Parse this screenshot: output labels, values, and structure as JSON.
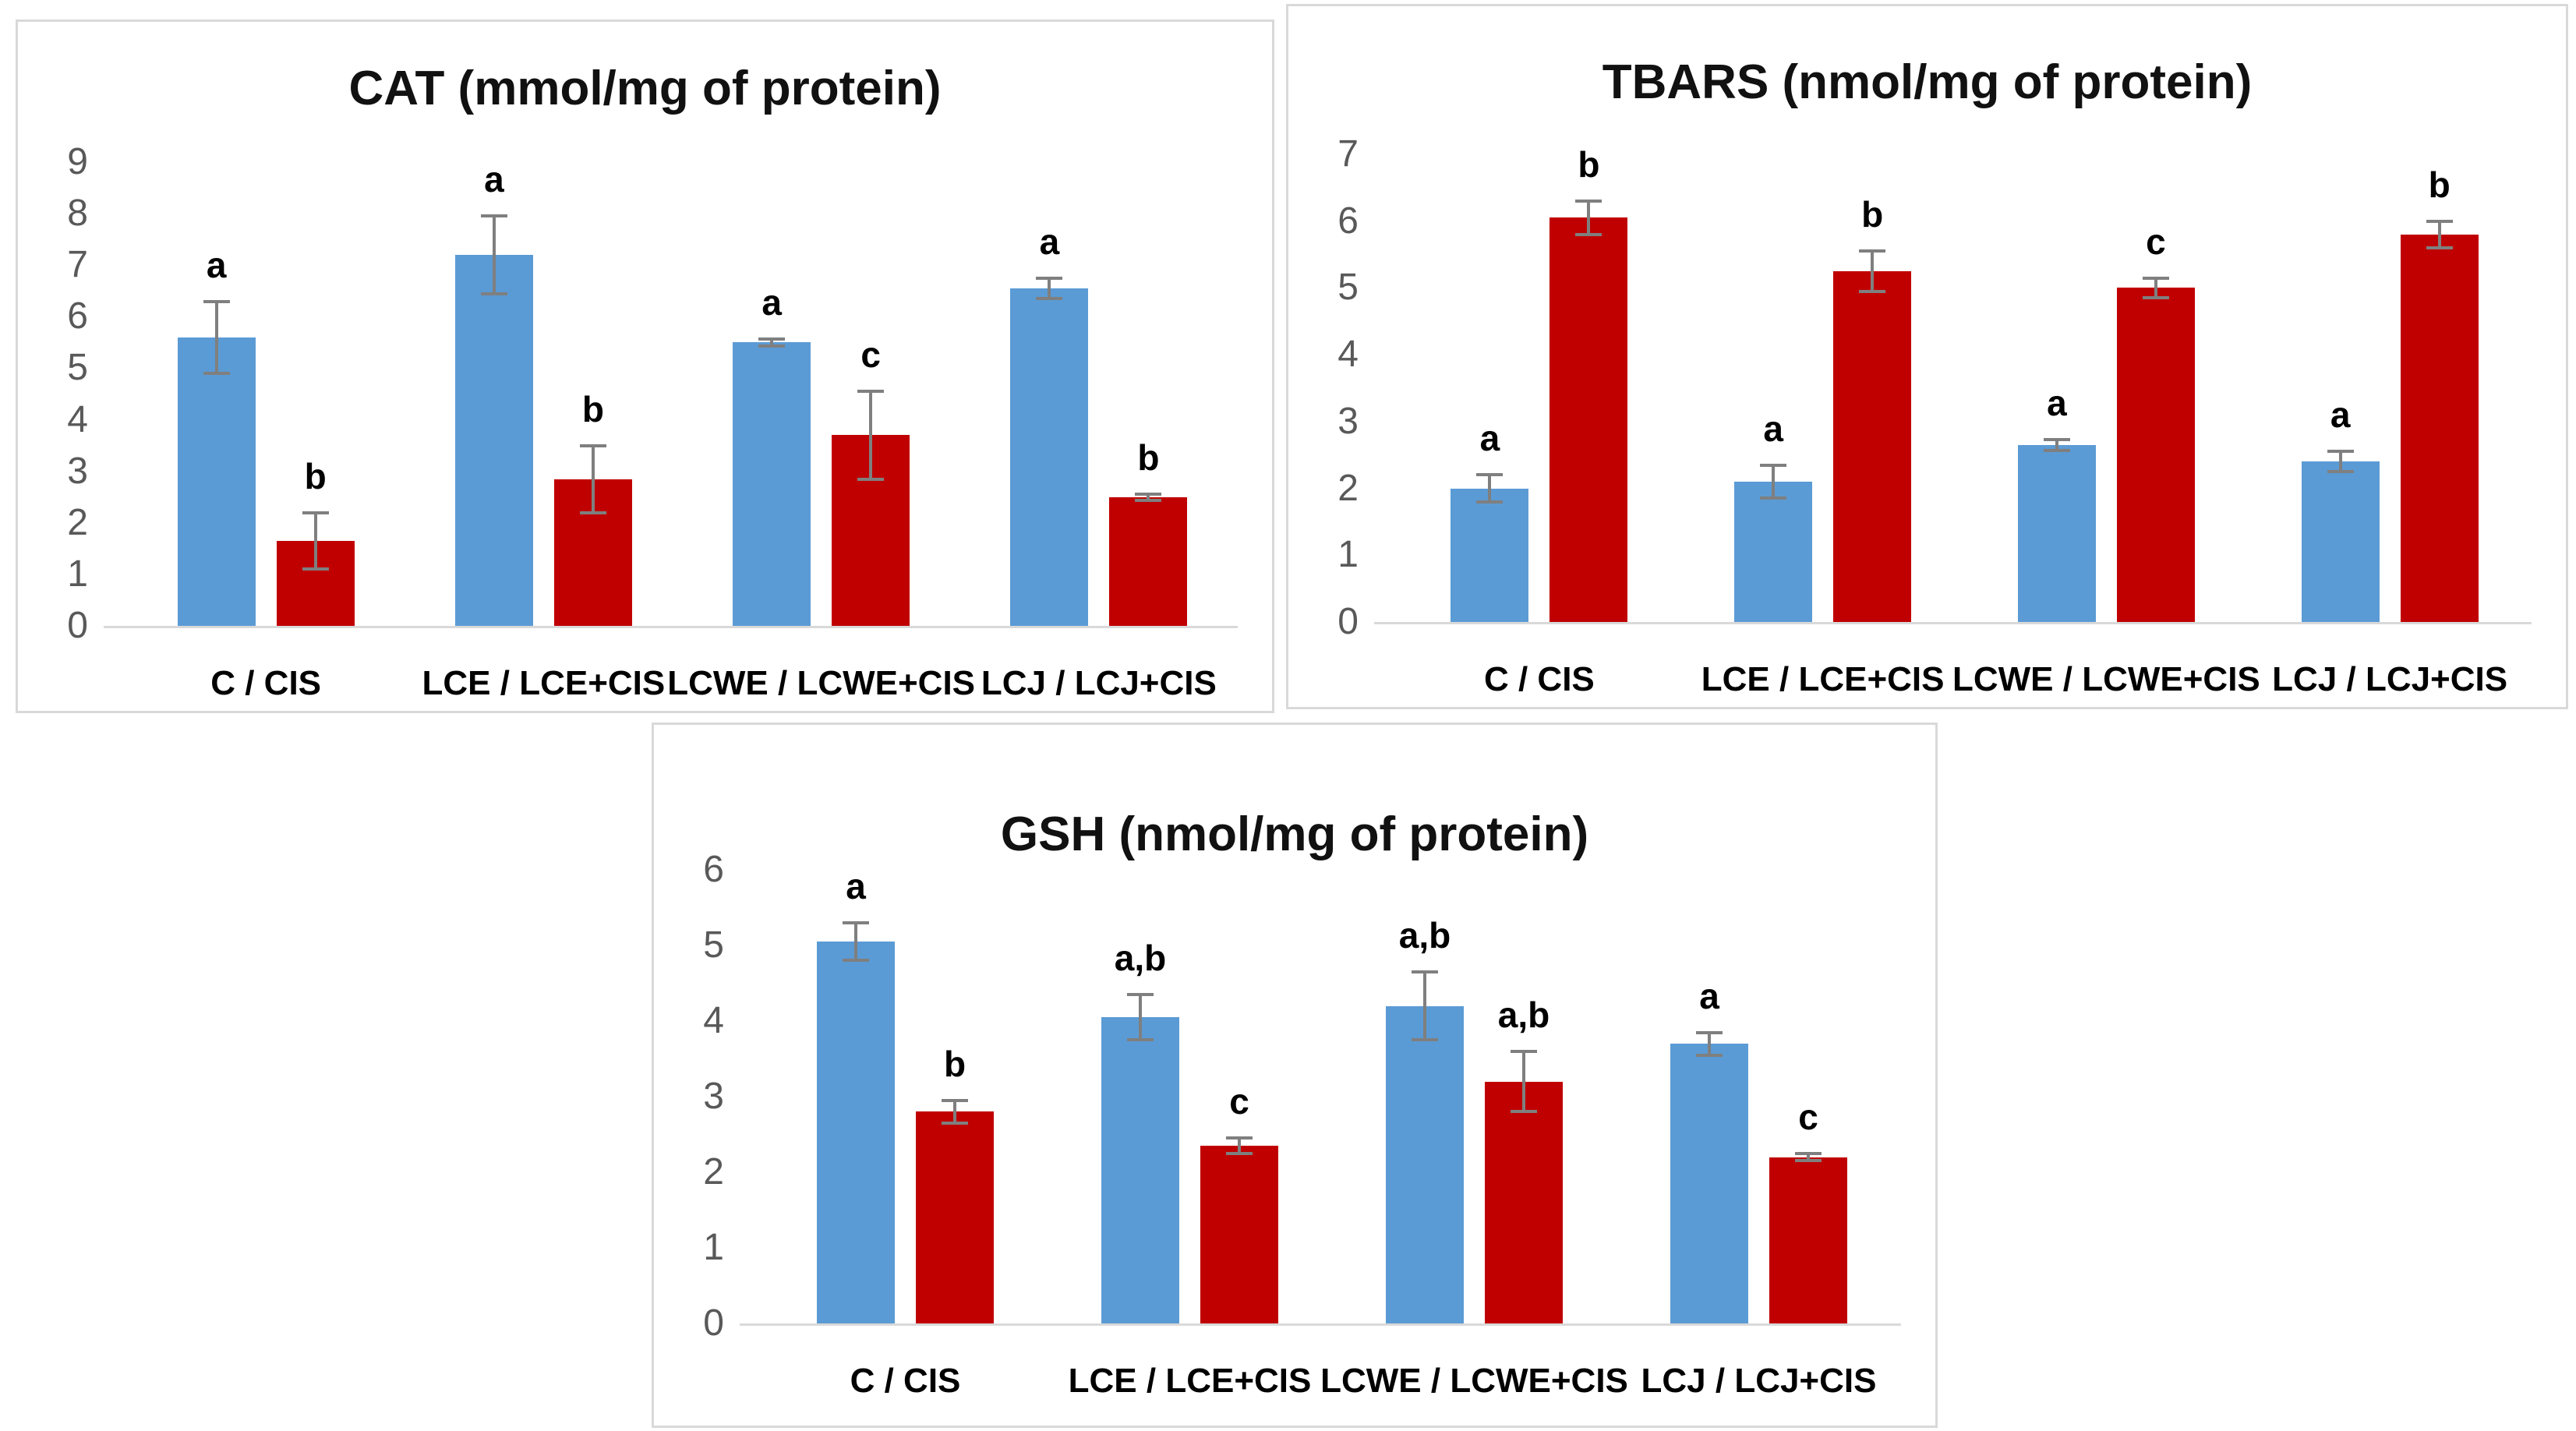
{
  "figure": {
    "background": "#ffffff",
    "panel_border_color": "#d9d9d9"
  },
  "colors": {
    "bar_blue": "#5b9bd5",
    "bar_red": "#c00000",
    "error_bar": "#7f7f7f",
    "axis_line": "#d9d9d9",
    "tick_text": "#595959",
    "label_text": "#000000"
  },
  "chart_data": [
    {
      "type": "bar",
      "title": "CAT (mmol/mg of protein)",
      "xlabel": "",
      "ylabel": "",
      "ylim": [
        0,
        9
      ],
      "yticks": [
        0,
        1,
        2,
        3,
        4,
        5,
        6,
        7,
        8,
        9
      ],
      "grid": false,
      "legend": "none",
      "categories": [
        "C / CIS",
        "LCE / LCE+CIS",
        "LCWE / LCWE+CIS",
        "LCJ / LCJ+CIS"
      ],
      "series": [
        {
          "name": "blue",
          "color": "#5b9bd5",
          "values": [
            5.6,
            7.2,
            5.5,
            6.55
          ],
          "errors": [
            0.7,
            0.75,
            0.07,
            0.2
          ],
          "letters": [
            "a",
            "a",
            "a",
            "a"
          ]
        },
        {
          "name": "red",
          "color": "#c00000",
          "values": [
            1.65,
            2.85,
            3.7,
            2.5
          ],
          "errors": [
            0.55,
            0.65,
            0.85,
            0.06
          ],
          "letters": [
            "b",
            "b",
            "c",
            "b"
          ]
        }
      ]
    },
    {
      "type": "bar",
      "title": "TBARS (nmol/mg of protein)",
      "xlabel": "",
      "ylabel": "",
      "ylim": [
        0,
        7
      ],
      "yticks": [
        0,
        1,
        2,
        3,
        4,
        5,
        6,
        7
      ],
      "grid": false,
      "legend": "none",
      "categories": [
        "C / CIS",
        "LCE / LCE+CIS",
        "LCWE / LCWE+CIS",
        "LCJ / LCJ+CIS"
      ],
      "series": [
        {
          "name": "blue",
          "color": "#5b9bd5",
          "values": [
            2.0,
            2.1,
            2.65,
            2.4
          ],
          "errors": [
            0.2,
            0.25,
            0.08,
            0.15
          ],
          "letters": [
            "a",
            "a",
            "a",
            "a"
          ]
        },
        {
          "name": "red",
          "color": "#c00000",
          "values": [
            6.05,
            5.25,
            5.0,
            5.8
          ],
          "errors": [
            0.25,
            0.3,
            0.15,
            0.2
          ],
          "letters": [
            "b",
            "b",
            "c",
            "b"
          ]
        }
      ]
    },
    {
      "type": "bar",
      "title": "GSH (nmol/mg of protein)",
      "xlabel": "",
      "ylabel": "",
      "ylim": [
        0,
        6
      ],
      "yticks": [
        0,
        1,
        2,
        3,
        4,
        5,
        6
      ],
      "grid": false,
      "legend": "none",
      "categories": [
        "C / CIS",
        "LCE / LCE+CIS",
        "LCWE / LCWE+CIS",
        "LCJ / LCJ+CIS"
      ],
      "series": [
        {
          "name": "blue",
          "color": "#5b9bd5",
          "values": [
            5.05,
            4.05,
            4.2,
            3.7
          ],
          "errors": [
            0.25,
            0.3,
            0.45,
            0.15
          ],
          "letters": [
            "a",
            "a,b",
            "a,b",
            "a"
          ]
        },
        {
          "name": "red",
          "color": "#c00000",
          "values": [
            2.8,
            2.35,
            3.2,
            2.2
          ],
          "errors": [
            0.15,
            0.1,
            0.4,
            0.05
          ],
          "letters": [
            "b",
            "c",
            "a,b",
            "c"
          ]
        }
      ]
    }
  ]
}
